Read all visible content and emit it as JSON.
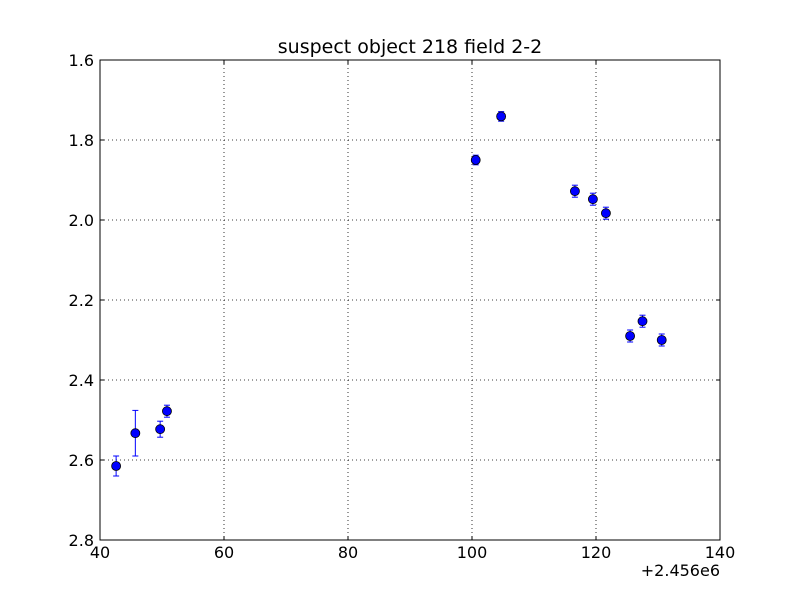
{
  "chart_data": {
    "type": "scatter",
    "title": "suspect object 218 field 2-2",
    "xlabel": "",
    "ylabel": "",
    "x_offset_label": "+2.456e6",
    "xlim": [
      40,
      140
    ],
    "ylim": [
      1.6,
      2.8
    ],
    "y_inverted": true,
    "grid": true,
    "x_ticks": [
      "40",
      "60",
      "80",
      "100",
      "120",
      "140"
    ],
    "y_ticks": [
      "1.6",
      "1.8",
      "2.0",
      "2.2",
      "2.4",
      "2.6",
      "2.8"
    ],
    "marker_color": "#0000ff",
    "errorbar_color": "#0000ff",
    "series": [
      {
        "x": [
          42.6,
          45.7,
          49.7,
          50.8,
          100.6,
          104.7,
          116.6,
          119.5,
          121.6,
          125.5,
          127.5,
          130.6
        ],
        "y": [
          2.615,
          2.533,
          2.523,
          2.478,
          1.85,
          1.741,
          1.928,
          1.948,
          1.983,
          2.29,
          2.253,
          2.3
        ],
        "yerr": [
          0.025,
          0.057,
          0.02,
          0.015,
          0.012,
          0.012,
          0.015,
          0.015,
          0.015,
          0.015,
          0.015,
          0.015
        ]
      }
    ]
  }
}
